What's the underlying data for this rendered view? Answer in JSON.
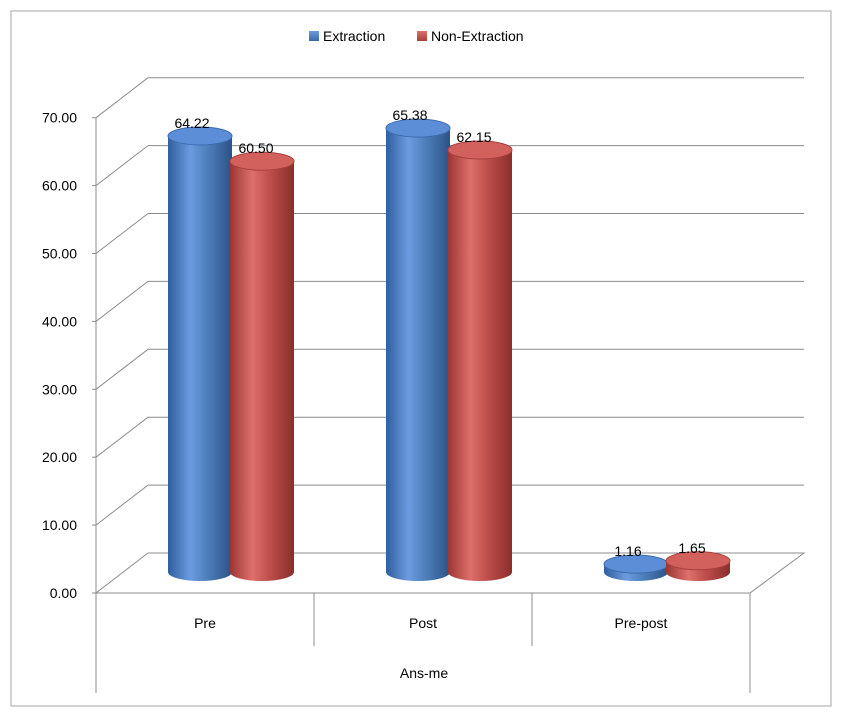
{
  "chart_data": {
    "type": "bar",
    "style": "3d-cylinder",
    "categories": [
      "Pre",
      "Post",
      "Pre-post"
    ],
    "category_group_label": "Ans-me",
    "series": [
      {
        "name": "Extraction",
        "values": [
          64.22,
          65.38,
          1.16
        ],
        "labels": [
          "64.22",
          "65.38",
          "1.16"
        ],
        "color": "#4F81BD"
      },
      {
        "name": "Non-Extraction",
        "values": [
          60.5,
          62.15,
          1.65
        ],
        "labels": [
          "60.50",
          "62.15",
          "1.65"
        ],
        "color": "#C0504D"
      }
    ],
    "ylim": [
      0,
      70
    ],
    "yticks": [
      "0.00",
      "10.00",
      "20.00",
      "30.00",
      "40.00",
      "50.00",
      "60.00",
      "70.00"
    ],
    "grid": true,
    "legend_position": "top-center"
  }
}
